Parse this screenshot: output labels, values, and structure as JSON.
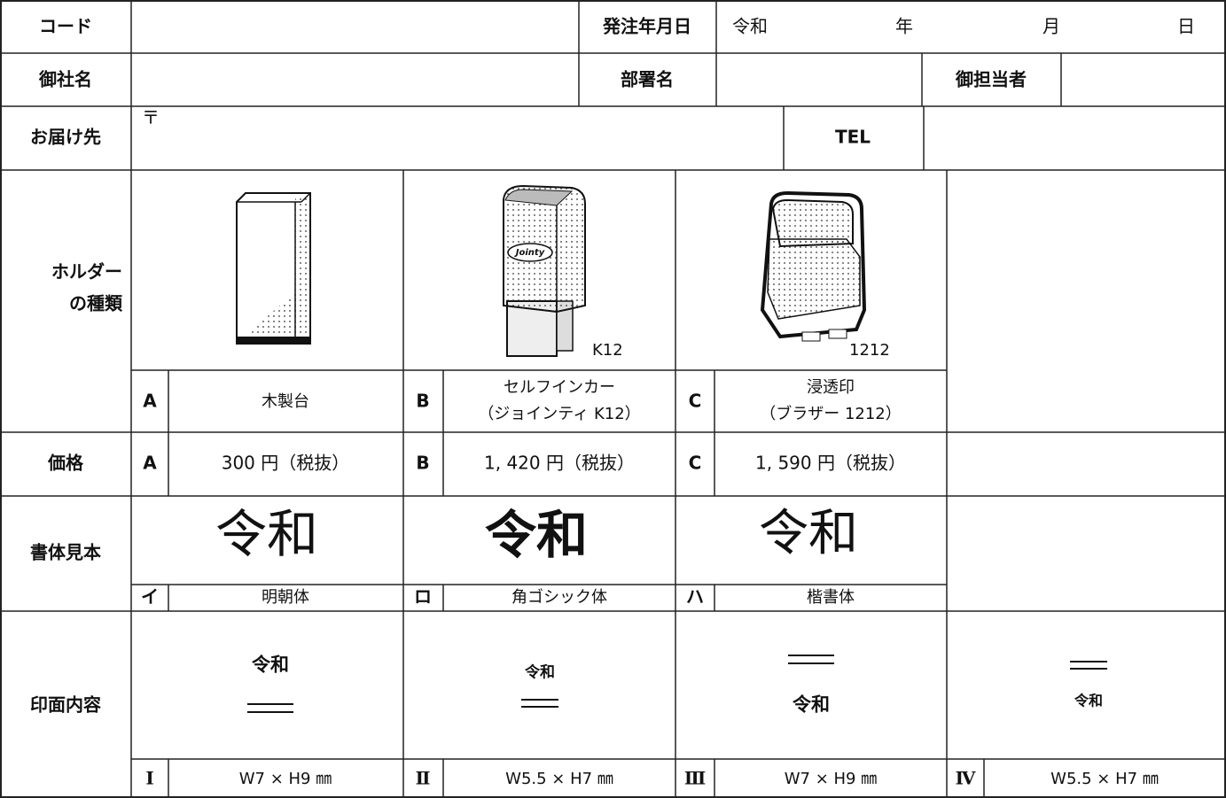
{
  "order": {
    "code_label": "コード",
    "date_label": "発注年月日",
    "era": "令和",
    "year": "年",
    "month": "月",
    "day": "日",
    "company_label": "御社名",
    "department_label": "部署名",
    "person_label": "御担当者",
    "address_label": "お届け先",
    "postal_mark": "〒",
    "tel_label": "TEL"
  },
  "holder": {
    "label_lines": [
      "ホルダー",
      "の種類"
    ],
    "items": [
      {
        "letter": "A",
        "name_lines": [
          "木製台"
        ]
      },
      {
        "letter": "B",
        "name_lines": [
          "セルフインカー",
          "（ジョインティ K12）"
        ],
        "model": "K12",
        "brand": "Jointy"
      },
      {
        "letter": "C",
        "name_lines": [
          "浸透印",
          "（ブラザー 1212）"
        ],
        "model": "1212"
      }
    ]
  },
  "price": {
    "label": "価格",
    "items": [
      {
        "letter": "A",
        "text": "300 円（税抜）"
      },
      {
        "letter": "B",
        "text": "1, 420 円（税抜）"
      },
      {
        "letter": "C",
        "text": "1, 590 円（税抜）"
      }
    ]
  },
  "typeface": {
    "label": "書体見本",
    "sample": "令和",
    "items": [
      {
        "mark": "イ",
        "name": "明朝体"
      },
      {
        "mark": "ロ",
        "name": "角ゴシック体"
      },
      {
        "mark": "ハ",
        "name": "楷書体"
      }
    ]
  },
  "imprint": {
    "label": "印面内容",
    "text": "令和",
    "items": [
      {
        "numeral": "Ⅰ",
        "size": "W7 × H9 ㎜"
      },
      {
        "numeral": "Ⅱ",
        "size": "W5.5 × H7 ㎜"
      },
      {
        "numeral": "Ⅲ",
        "size": "W7 × H9 ㎜"
      },
      {
        "numeral": "Ⅳ",
        "size": "W5.5 × H7 ㎜"
      }
    ]
  }
}
